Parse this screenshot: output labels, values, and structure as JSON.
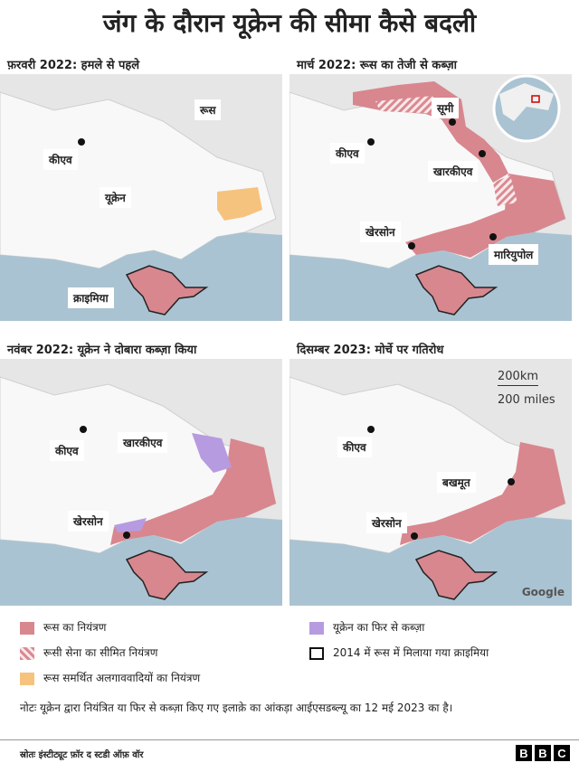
{
  "title": "जंग के दौरान यूक्रेन की सीमा कैसे बदली",
  "panels": [
    {
      "title": "फ़रवरी 2022: हमले से पहले",
      "labels": [
        "रूस",
        "कीएव",
        "यूक्रेन",
        "क्राइमिया"
      ]
    },
    {
      "title": "मार्च 2022: रूस का तेजी से कब्ज़ा",
      "labels": [
        "सूमी",
        "कीएव",
        "खारकीएव",
        "खेरसोन",
        "मारियुपोल"
      ]
    },
    {
      "title": "नवंबर 2022: यूक्रेन ने दोबारा कब्ज़ा किया",
      "labels": [
        "कीएव",
        "खारकीएव",
        "खेरसोन"
      ]
    },
    {
      "title": "दिसम्बर 2023: मोर्चे पर गतिरोध",
      "labels": [
        "कीएव",
        "बखमूत",
        "खेरसोन"
      ]
    }
  ],
  "scale": {
    "km": "200km",
    "miles": "200 miles"
  },
  "credit": "Google",
  "legend": [
    "रूस का नियंत्रण",
    "रूसी सेना का सीमित नियंत्रण",
    "रूस समर्थित अलगाववादियों का नियंत्रण",
    "यूक्रेन का फिर से कब्ज़ा",
    "2014 में रूस में मिलाया गया क्राइमिया"
  ],
  "note": "नोटः यूक्रेन द्वारा नियंत्रित या फिर से कब्ज़ा किए गए इलाक़े का आंकड़ा आईएसडब्ल्यू का 12 मई 2023 का है।",
  "source": "स्रोतः इंस्टीट्यूट फ़ॉर द स्टडी ऑफ़ वॉर",
  "logo": [
    "B",
    "B",
    "C"
  ]
}
